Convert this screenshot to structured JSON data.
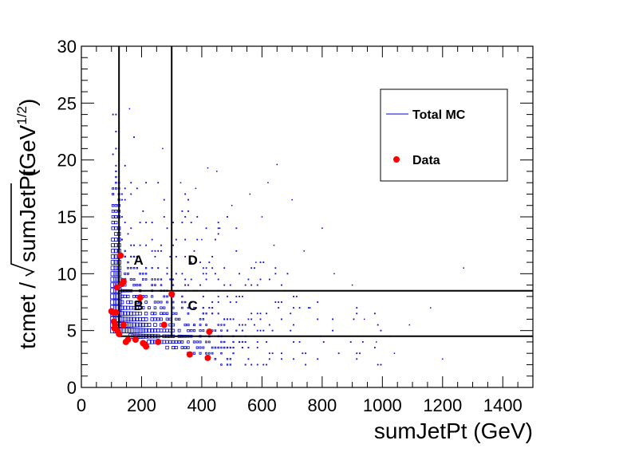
{
  "chart_data": {
    "type": "scatter",
    "xlabel": "sumJetPt (GeV)",
    "ylabel_text": "tcmet /",
    "ylabel_sqrt": "sumJetPt",
    "ylabel_unit_prefix": "(GeV",
    "ylabel_unit_exp": "1/2",
    "ylabel_unit_suffix": ")",
    "xlim": [
      0,
      1500
    ],
    "ylim": [
      0,
      30
    ],
    "xticks": [
      0,
      200,
      400,
      600,
      800,
      1000,
      1200,
      1400
    ],
    "yticks": [
      0,
      5,
      10,
      15,
      20,
      25,
      30
    ],
    "legend": {
      "position": "top-right",
      "entries": [
        {
          "label": "Total MC",
          "marker": "line",
          "color": "#0000cc"
        },
        {
          "label": "Data",
          "marker": "circle",
          "color": "#ff0000"
        }
      ]
    },
    "regions": [
      {
        "label": "A",
        "x": 190,
        "y": 10.8
      },
      {
        "label": "B",
        "x": 190,
        "y": 6.8
      },
      {
        "label": "C",
        "x": 370,
        "y": 6.8
      },
      {
        "label": "D",
        "x": 370,
        "y": 10.8
      }
    ],
    "cut_lines": {
      "vertical_x": [
        125,
        300
      ],
      "horizontal_y": [
        4.5,
        8.5
      ]
    },
    "series": [
      {
        "name": "Data",
        "color": "#ff0000",
        "points": [
          [
            100,
            6.7
          ],
          [
            105,
            6.6
          ],
          [
            108,
            5.8
          ],
          [
            110,
            5.2
          ],
          [
            112,
            5.5
          ],
          [
            115,
            6.6
          ],
          [
            118,
            8.8
          ],
          [
            120,
            5.0
          ],
          [
            125,
            4.7
          ],
          [
            130,
            11.6
          ],
          [
            135,
            9.1
          ],
          [
            140,
            9.3
          ],
          [
            140,
            5.5
          ],
          [
            148,
            4.0
          ],
          [
            155,
            4.2
          ],
          [
            180,
            4.2
          ],
          [
            195,
            7.9
          ],
          [
            205,
            3.9
          ],
          [
            210,
            3.8
          ],
          [
            215,
            3.6
          ],
          [
            255,
            4.0
          ],
          [
            275,
            5.5
          ],
          [
            300,
            8.2
          ],
          [
            360,
            2.9
          ],
          [
            420,
            2.6
          ],
          [
            425,
            4.9
          ]
        ]
      },
      {
        "name": "Total MC",
        "color": "#0000cc",
        "points": [
          [
            160,
            24.5
          ],
          [
            270,
            21
          ],
          [
            650,
            19.6
          ],
          [
            420,
            19.3
          ],
          [
            450,
            19
          ],
          [
            620,
            18
          ],
          [
            700,
            16.5
          ],
          [
            800,
            14
          ],
          [
            840,
            10
          ],
          [
            900,
            9
          ],
          [
            1000,
            8.5
          ],
          [
            1270,
            10.5
          ],
          [
            1200,
            2.5
          ],
          [
            1090,
            5.5
          ],
          [
            1160,
            7
          ],
          [
            560,
            17
          ],
          [
            380,
            17.5
          ],
          [
            330,
            18
          ],
          [
            500,
            16
          ],
          [
            600,
            15
          ],
          [
            740,
            12
          ],
          [
            980,
            4
          ],
          [
            1040,
            3
          ],
          [
            880,
            4.5
          ],
          [
            940,
            6
          ],
          [
            760,
            7
          ],
          [
            580,
            11
          ],
          [
            640,
            12.5
          ],
          [
            460,
            14
          ],
          [
            400,
            13
          ]
        ]
      }
    ]
  }
}
